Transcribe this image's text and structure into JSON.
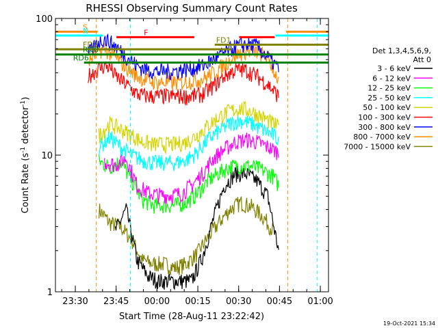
{
  "chart_data": {
    "type": "line",
    "title": "RHESSI Observing Summary Count Rates",
    "ylabel": "Count Rate (s",
    "ylabel_sup": "-1",
    "ylabel_tail": " detector",
    "ylabel_sup2": "-1",
    "ylabel_close": ")",
    "xlabel": "Start Time (28-Aug-11 23:22:42)",
    "y_scale": "log",
    "ylim": [
      1,
      100
    ],
    "y_tick_labels": [
      "1",
      "10",
      "100"
    ],
    "x_tick_labels": [
      "23:30",
      "23:45",
      "00:00",
      "00:15",
      "00:30",
      "00:45",
      "01:00"
    ],
    "x_tick_minutes": [
      7.3,
      22.3,
      37.3,
      52.3,
      67.3,
      82.3,
      97.3
    ],
    "xlim_minutes": [
      0,
      100.3
    ],
    "legend_header": [
      "Det 1,3,4,5,6,9,",
      "Att 0"
    ],
    "legend_position": "right",
    "timestamp": "19-Oct-2021 15:34",
    "series": [
      {
        "name": "3 - 6 keV",
        "color": "#000000",
        "t": [
          22,
          26,
          30,
          34,
          38,
          42,
          46,
          50,
          54,
          58,
          62,
          66,
          70,
          74,
          78,
          82
        ],
        "y": [
          2.8,
          4,
          1.7,
          1.3,
          1.2,
          1.2,
          1.2,
          1.2,
          1.8,
          3.4,
          6,
          7.3,
          7.3,
          6.5,
          5,
          2
        ]
      },
      {
        "name": "6 - 12 keV",
        "color": "#ff00ff",
        "t": [
          18,
          22,
          26,
          30,
          34,
          38,
          42,
          46,
          50,
          54,
          58,
          62,
          66,
          70,
          74,
          78,
          82
        ],
        "y": [
          9,
          8.5,
          9.5,
          6,
          5.3,
          5.1,
          5.1,
          5.2,
          6,
          7.3,
          9.5,
          11,
          12.5,
          13,
          12.5,
          11.5,
          10.5
        ]
      },
      {
        "name": "12 - 25 keV",
        "color": "#00ff00",
        "t": [
          16,
          20,
          24,
          28,
          32,
          36,
          40,
          44,
          48,
          52,
          56,
          60,
          64,
          68,
          72,
          76,
          80,
          82
        ],
        "y": [
          9,
          8.2,
          9,
          6.5,
          4.7,
          4.3,
          4.3,
          4.3,
          4.5,
          5.2,
          6.5,
          7.4,
          8.2,
          8.4,
          8.3,
          7.8,
          7,
          6
        ]
      },
      {
        "name": "25 - 50 keV",
        "color": "#00ffff",
        "t": [
          16,
          20,
          24,
          28,
          32,
          36,
          40,
          44,
          48,
          52,
          56,
          60,
          64,
          68,
          72,
          76,
          80,
          82
        ],
        "y": [
          11.5,
          13.5,
          11.5,
          10,
          9.2,
          8.8,
          8.8,
          8.8,
          9.2,
          10.5,
          13,
          15,
          17,
          18,
          17,
          15.5,
          14,
          13
        ]
      },
      {
        "name": "50 - 100 keV",
        "color": "#d4d400",
        "t": [
          16,
          20,
          24,
          28,
          32,
          36,
          40,
          44,
          48,
          52,
          56,
          60,
          64,
          68,
          72,
          76,
          80,
          82
        ],
        "y": [
          14,
          17,
          15.5,
          14,
          12.5,
          12,
          12,
          12,
          12.5,
          14,
          16.5,
          19,
          21,
          22,
          21,
          19,
          17,
          16
        ]
      },
      {
        "name": "100 - 300 keV",
        "color": "#ff0000",
        "t": [
          12,
          16,
          18,
          20,
          22,
          26,
          30,
          34,
          38,
          42,
          46,
          50,
          54,
          58,
          62,
          66,
          70,
          74,
          78,
          82
        ],
        "y": [
          38,
          43,
          45,
          44,
          38,
          33,
          28,
          27,
          27,
          27,
          27,
          27,
          28,
          32,
          38,
          42,
          42,
          38,
          33,
          27
        ]
      },
      {
        "name": "300 - 800 keV",
        "color": "#0000ff",
        "t": [
          12,
          16,
          18,
          22,
          26,
          30,
          34,
          38,
          42,
          46,
          50,
          54,
          58,
          62,
          66,
          70,
          74,
          78,
          82
        ],
        "y": [
          55,
          68,
          71,
          63,
          53,
          45,
          42,
          41,
          41,
          42,
          43,
          45,
          50,
          56,
          62,
          65,
          63,
          52,
          43
        ]
      },
      {
        "name": "800 - 7000 keV",
        "color": "#ff8c00",
        "t": [
          12,
          16,
          18,
          22,
          26,
          30,
          34,
          38,
          42,
          46,
          50,
          54,
          58,
          62,
          66,
          70,
          74,
          78,
          82
        ],
        "y": [
          48,
          58,
          60,
          52,
          44,
          38,
          35,
          34,
          34,
          34,
          35,
          36,
          40,
          46,
          54,
          58,
          57,
          52,
          35
        ]
      },
      {
        "name": "7000 - 15000 keV",
        "color": "#808000",
        "t": [
          16,
          20,
          24,
          28,
          32,
          36,
          40,
          44,
          48,
          52,
          56,
          60,
          64,
          68,
          72,
          76,
          80
        ],
        "y": [
          4,
          3.2,
          3,
          2.4,
          1.7,
          1.6,
          1.6,
          1.5,
          1.6,
          1.9,
          2.5,
          3.2,
          4,
          4.5,
          4.2,
          3.6,
          2.8
        ]
      }
    ],
    "flags": [
      {
        "label": "S",
        "color": "#ff8c00",
        "y": 80,
        "segments": [
          [
            0,
            15.5
          ],
          [
            84.7,
            100.3
          ]
        ]
      },
      {
        "label": "N",
        "color": "#00ffff",
        "y": 75,
        "segments": [
          [
            0,
            17.5
          ],
          [
            80.8,
            100.3
          ]
        ]
      },
      {
        "label": "F",
        "color": "#ff0000",
        "y": 73,
        "segments": [
          [
            22.4,
            51
          ],
          [
            67.5,
            80.5
          ]
        ]
      },
      {
        "label": "FD1",
        "color": "#808000",
        "y": 64.3,
        "segments": [
          [
            58.5,
            100.3
          ]
        ]
      },
      {
        "label": "FD2",
        "color": "#808000",
        "y": 59.5,
        "segments": [
          [
            0,
            64.5
          ]
        ]
      },
      {
        "label": "RD0",
        "color": "#008000",
        "y": 54.5,
        "segments": [
          [
            0,
            100.3
          ]
        ]
      },
      {
        "label": "RD6",
        "color": "#008000",
        "y": 47.5,
        "segments": [
          [
            10.5,
            100.3
          ]
        ]
      }
    ],
    "event_markers": [
      {
        "color": "#ff8c00",
        "t": 15.0
      },
      {
        "color": "#00ffff",
        "t": 27.5
      },
      {
        "color": "#ff8c00",
        "t": 85.3
      },
      {
        "color": "#00ffff",
        "t": 96.2
      }
    ]
  }
}
